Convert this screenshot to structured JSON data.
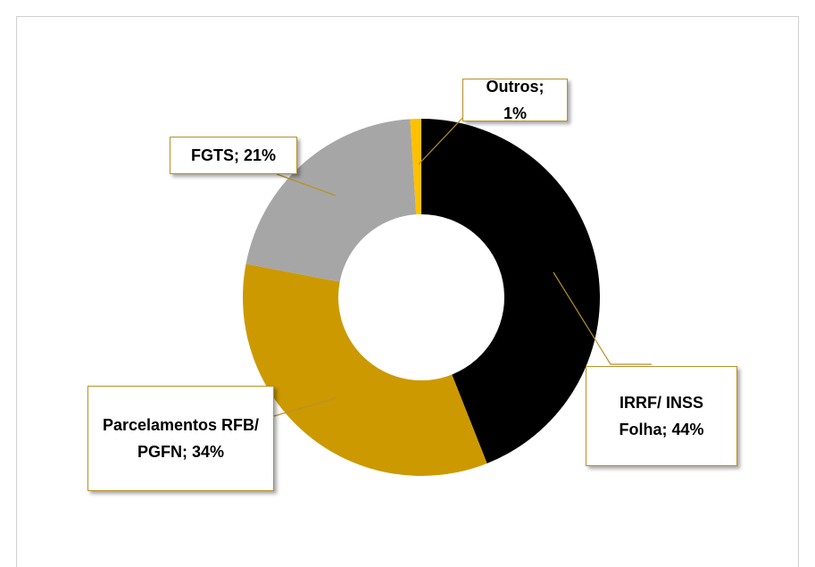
{
  "chart_data": {
    "type": "donut",
    "values": [
      44,
      34,
      21,
      1
    ],
    "value_labels": [
      "IRRF/ INSS Folha; 44%",
      "Parcelamentos RFB/ PGFN; 34%",
      "FGTS; 21%",
      "Outros; 1%"
    ],
    "colors": [
      "#000000",
      "#cc9900",
      "#a6a6a6",
      "#ffc000"
    ]
  }
}
